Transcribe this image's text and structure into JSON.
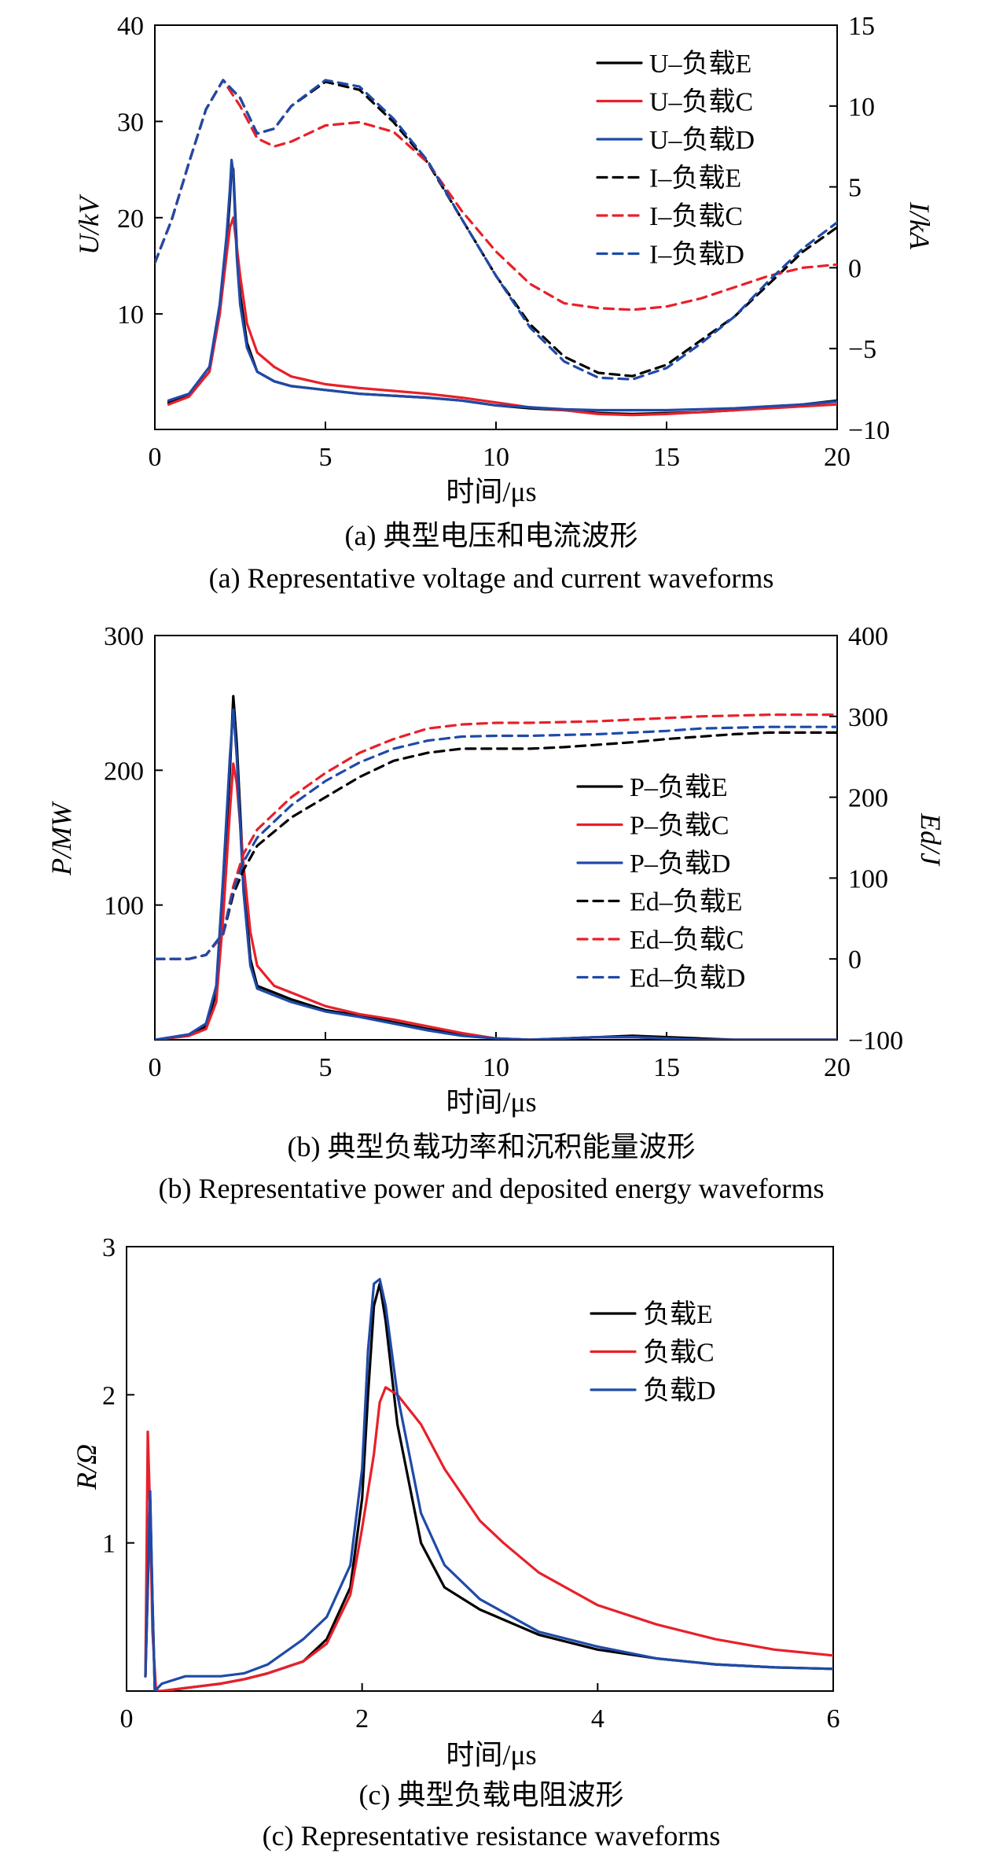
{
  "colors": {
    "E": "#000000",
    "C": "#e8202a",
    "D": "#1f4aa8"
  },
  "chart_data": [
    {
      "type": "line",
      "xlabel": "时间/μs",
      "ylabel_left": "U/kV",
      "ylabel_right": "I/kA",
      "caption_cn": "(a) 典型电压和电流波形",
      "caption_en": "(a) Representative voltage and current waveforms",
      "xlim": [
        0,
        20
      ],
      "ylim_left": [
        -2,
        40
      ],
      "ylim_right": [
        -10,
        15
      ],
      "xticks": [
        "0",
        "5",
        "10",
        "15",
        "20"
      ],
      "yticks_left": [
        "10",
        "20",
        "30",
        "40"
      ],
      "yticks_right": [
        "−10",
        "−5",
        "0",
        "5",
        "10",
        "15"
      ],
      "legend_position": "top-right",
      "series": [
        {
          "name": "U–负载E",
          "axis": "left",
          "style": "solid",
          "color_key": "E",
          "x": [
            0.4,
            1.0,
            1.6,
            1.9,
            2.1,
            2.2,
            2.25,
            2.3,
            2.4,
            2.5,
            2.7,
            3.0,
            3.5,
            4,
            5,
            6,
            7,
            8,
            9,
            10,
            11,
            12,
            13,
            14,
            15,
            16,
            17,
            18,
            19,
            20
          ],
          "y": [
            0.8,
            1.5,
            4,
            10,
            17,
            22,
            25.5,
            25,
            17,
            12,
            7,
            4,
            3,
            2.5,
            2.1,
            1.7,
            1.5,
            1.3,
            1.0,
            0.5,
            0.2,
            0,
            -0.3,
            -0.4,
            -0.3,
            -0.2,
            0,
            0.3,
            0.6,
            1.0
          ]
        },
        {
          "name": "U–负载C",
          "axis": "left",
          "style": "solid",
          "color_key": "C",
          "x": [
            0.4,
            1.0,
            1.6,
            1.9,
            2.1,
            2.2,
            2.3,
            2.4,
            2.5,
            2.7,
            3.0,
            3.5,
            4,
            5,
            6,
            7,
            8,
            9,
            10,
            11,
            12,
            13,
            14,
            15,
            16,
            17,
            18,
            19,
            20
          ],
          "y": [
            0.6,
            1.4,
            4,
            10,
            16,
            19,
            20,
            17,
            14,
            9,
            6,
            4.5,
            3.5,
            2.7,
            2.3,
            2.0,
            1.7,
            1.3,
            0.8,
            0.3,
            0,
            -0.4,
            -0.5,
            -0.4,
            -0.2,
            0,
            0.2,
            0.4,
            0.6
          ]
        },
        {
          "name": "U–负载D",
          "axis": "left",
          "style": "solid",
          "color_key": "D",
          "x": [
            0.4,
            1.0,
            1.6,
            1.9,
            2.1,
            2.2,
            2.25,
            2.3,
            2.4,
            2.5,
            2.7,
            3.0,
            3.5,
            4,
            5,
            6,
            7,
            8,
            9,
            10,
            11,
            12,
            13,
            14,
            15,
            16,
            17,
            18,
            19,
            20
          ],
          "y": [
            1.0,
            1.7,
            4.5,
            11,
            18,
            23,
            26,
            24.5,
            16,
            11,
            6.5,
            4,
            3,
            2.5,
            2.1,
            1.7,
            1.5,
            1.3,
            1.0,
            0.5,
            0.3,
            0.1,
            0,
            0,
            0,
            0.1,
            0.2,
            0.4,
            0.6,
            0.9
          ]
        },
        {
          "name": "I–负载E",
          "axis": "right",
          "style": "dashed",
          "color_key": "E",
          "x": [
            0,
            0.5,
            1.0,
            1.5,
            2.0,
            2.5,
            3.0,
            3.5,
            4,
            5,
            6,
            7,
            8,
            9,
            10,
            11,
            12,
            13,
            14,
            15,
            16,
            17,
            18,
            19,
            20
          ],
          "y": [
            0.3,
            3,
            6.5,
            9.8,
            11.6,
            10.5,
            8.3,
            8.6,
            10,
            11.5,
            11.0,
            9,
            6.5,
            3,
            -0.5,
            -3.5,
            -5.5,
            -6.5,
            -6.7,
            -6,
            -4.5,
            -3,
            -1,
            1,
            2.5
          ]
        },
        {
          "name": "I–负载C",
          "axis": "right",
          "style": "dashed",
          "color_key": "C",
          "x": [
            0,
            0.5,
            1.0,
            1.5,
            2.0,
            2.5,
            3.0,
            3.5,
            4,
            5,
            6,
            7,
            8,
            9,
            10,
            11,
            12,
            13,
            14,
            15,
            16,
            17,
            18,
            19,
            20
          ],
          "y": [
            0.3,
            3,
            6.5,
            9.8,
            11.6,
            10,
            8,
            7.5,
            7.8,
            8.8,
            9.0,
            8.4,
            6.5,
            3.5,
            1,
            -1,
            -2.2,
            -2.5,
            -2.6,
            -2.4,
            -1.9,
            -1.2,
            -0.5,
            0,
            0.2
          ]
        },
        {
          "name": "I–负载D",
          "axis": "right",
          "style": "dashed",
          "color_key": "D",
          "x": [
            0,
            0.5,
            1.0,
            1.5,
            2.0,
            2.5,
            3.0,
            3.5,
            4,
            5,
            6,
            7,
            8,
            9,
            10,
            11,
            12,
            13,
            14,
            15,
            16,
            17,
            18,
            19,
            20
          ],
          "y": [
            0.3,
            3,
            6.5,
            9.8,
            11.6,
            10.5,
            8.3,
            8.6,
            10,
            11.6,
            11.2,
            9.2,
            6.6,
            3,
            -0.5,
            -3.7,
            -5.8,
            -6.8,
            -6.9,
            -6.2,
            -4.7,
            -3,
            -0.8,
            1.2,
            2.8
          ]
        }
      ]
    },
    {
      "type": "line",
      "xlabel": "时间/μs",
      "ylabel_left": "P/MW",
      "ylabel_right": "Ed/J",
      "caption_cn": "(b) 典型负载功率和沉积能量波形",
      "caption_en": "(b) Representative power and deposited energy waveforms",
      "xlim": [
        0,
        20
      ],
      "ylim_left": [
        0,
        300
      ],
      "ylim_right": [
        -100,
        400
      ],
      "xticks": [
        "0",
        "5",
        "10",
        "15",
        "20"
      ],
      "yticks_left": [
        "100",
        "200",
        "300"
      ],
      "yticks_right": [
        "−100",
        "0",
        "100",
        "200",
        "300",
        "400"
      ],
      "legend_position": "center-right",
      "series": [
        {
          "name": "P–负载E",
          "axis": "left",
          "style": "solid",
          "color_key": "E",
          "x": [
            0,
            1.0,
            1.5,
            1.8,
            2.0,
            2.2,
            2.3,
            2.4,
            2.6,
            2.8,
            3,
            3.5,
            4,
            5,
            6,
            7,
            8,
            9,
            10,
            11,
            12,
            13,
            14,
            15,
            16,
            17,
            18,
            19,
            20
          ],
          "y": [
            0,
            3,
            10,
            35,
            110,
            200,
            255,
            220,
            120,
            60,
            40,
            35,
            30,
            22,
            18,
            13,
            8,
            4,
            1,
            0,
            1,
            2,
            3,
            2,
            1,
            0,
            0,
            0,
            0
          ]
        },
        {
          "name": "P–负载C",
          "axis": "left",
          "style": "solid",
          "color_key": "C",
          "x": [
            0,
            1.0,
            1.5,
            1.8,
            2.0,
            2.2,
            2.3,
            2.4,
            2.6,
            2.8,
            3,
            3.5,
            4,
            5,
            6,
            7,
            8,
            9,
            10,
            11,
            12,
            13,
            14,
            15,
            16,
            17,
            18,
            19,
            20
          ],
          "y": [
            0,
            3,
            8,
            28,
            90,
            170,
            205,
            190,
            130,
            80,
            55,
            40,
            35,
            25,
            19,
            15,
            10,
            5,
            1,
            0,
            1,
            2,
            2,
            1,
            0,
            0,
            0,
            0,
            0
          ]
        },
        {
          "name": "P–负载D",
          "axis": "left",
          "style": "solid",
          "color_key": "D",
          "x": [
            0,
            1.0,
            1.5,
            1.8,
            2.0,
            2.2,
            2.3,
            2.4,
            2.6,
            2.8,
            3,
            3.5,
            4,
            5,
            6,
            7,
            8,
            9,
            10,
            11,
            12,
            13,
            14,
            15,
            16,
            17,
            18,
            19,
            20
          ],
          "y": [
            0,
            4,
            12,
            40,
            120,
            210,
            245,
            210,
            110,
            55,
            38,
            33,
            28,
            21,
            17,
            12,
            7,
            3,
            1,
            0,
            1,
            2,
            2,
            1,
            0,
            0,
            0,
            0,
            0
          ]
        },
        {
          "name": "Ed–负载E",
          "axis": "right",
          "style": "dashed",
          "color_key": "E",
          "x": [
            0,
            1.0,
            1.5,
            2.0,
            2.3,
            2.6,
            3,
            4,
            5,
            6,
            7,
            8,
            9,
            10,
            11,
            12,
            13,
            14,
            15,
            16,
            17,
            18,
            19,
            20
          ],
          "y": [
            0,
            0,
            5,
            30,
            80,
            110,
            140,
            175,
            200,
            225,
            245,
            255,
            260,
            260,
            260,
            262,
            265,
            268,
            272,
            275,
            278,
            280,
            280,
            280
          ]
        },
        {
          "name": "Ed–负载C",
          "axis": "right",
          "style": "dashed",
          "color_key": "C",
          "x": [
            0,
            1.0,
            1.5,
            2.0,
            2.3,
            2.6,
            3,
            4,
            5,
            6,
            7,
            8,
            9,
            10,
            11,
            12,
            13,
            14,
            15,
            16,
            17,
            18,
            19,
            20
          ],
          "y": [
            0,
            0,
            5,
            30,
            90,
            130,
            160,
            200,
            230,
            255,
            272,
            285,
            290,
            292,
            292,
            293,
            294,
            296,
            298,
            300,
            301,
            302,
            302,
            302
          ]
        },
        {
          "name": "Ed–负载D",
          "axis": "right",
          "style": "dashed",
          "color_key": "D",
          "x": [
            0,
            1.0,
            1.5,
            2.0,
            2.3,
            2.6,
            3,
            4,
            5,
            6,
            7,
            8,
            9,
            10,
            11,
            12,
            13,
            14,
            15,
            16,
            17,
            18,
            19,
            20
          ],
          "y": [
            0,
            0,
            5,
            32,
            85,
            120,
            150,
            190,
            220,
            243,
            260,
            270,
            275,
            276,
            276,
            277,
            278,
            280,
            282,
            285,
            286,
            287,
            287,
            287
          ]
        }
      ]
    },
    {
      "type": "line",
      "xlabel": "时间/μs",
      "ylabel_left": "R/Ω",
      "caption_cn": "(c) 典型负载电阻波形",
      "caption_en": "(c) Representative resistance waveforms",
      "xlim": [
        0,
        6
      ],
      "ylim_left": [
        0,
        3
      ],
      "xticks": [
        "0",
        "2",
        "4",
        "6"
      ],
      "yticks_left": [
        "1",
        "2",
        "3"
      ],
      "legend_position": "top-right",
      "series": [
        {
          "name": "负载E",
          "axis": "left",
          "style": "solid",
          "color_key": "E",
          "x": [
            0.16,
            0.2,
            0.22,
            0.24,
            0.3,
            0.5,
            0.8,
            1.0,
            1.2,
            1.5,
            1.7,
            1.9,
            2.0,
            2.05,
            2.1,
            2.15,
            2.2,
            2.3,
            2.5,
            2.7,
            3.0,
            3.5,
            4,
            4.5,
            5,
            5.5,
            6
          ],
          "y": [
            0.1,
            1.3,
            0.6,
            0,
            0,
            0.02,
            0.05,
            0.08,
            0.12,
            0.2,
            0.35,
            0.7,
            1.3,
            2.0,
            2.6,
            2.75,
            2.5,
            1.8,
            1.0,
            0.7,
            0.55,
            0.38,
            0.28,
            0.22,
            0.18,
            0.16,
            0.15
          ]
        },
        {
          "name": "负载C",
          "axis": "left",
          "style": "solid",
          "color_key": "C",
          "x": [
            0.16,
            0.18,
            0.2,
            0.22,
            0.25,
            0.3,
            0.5,
            0.8,
            1.0,
            1.2,
            1.5,
            1.7,
            1.9,
            2.0,
            2.1,
            2.15,
            2.2,
            2.3,
            2.5,
            2.7,
            3.0,
            3.2,
            3.5,
            4,
            4.5,
            5,
            5.5,
            6
          ],
          "y": [
            0.1,
            1.75,
            1.2,
            0.4,
            0,
            0,
            0.02,
            0.05,
            0.08,
            0.12,
            0.2,
            0.32,
            0.65,
            1.1,
            1.6,
            1.95,
            2.05,
            2.0,
            1.8,
            1.5,
            1.15,
            1.0,
            0.8,
            0.58,
            0.45,
            0.35,
            0.28,
            0.24
          ]
        },
        {
          "name": "负载D",
          "axis": "left",
          "style": "solid",
          "color_key": "D",
          "x": [
            0.16,
            0.2,
            0.22,
            0.24,
            0.3,
            0.5,
            0.8,
            1.0,
            1.2,
            1.5,
            1.7,
            1.9,
            2.0,
            2.05,
            2.1,
            2.15,
            2.2,
            2.3,
            2.5,
            2.7,
            3.0,
            3.5,
            4,
            4.5,
            5,
            5.5,
            6
          ],
          "y": [
            0.1,
            1.35,
            0.6,
            0,
            0.05,
            0.1,
            0.1,
            0.12,
            0.18,
            0.35,
            0.5,
            0.85,
            1.5,
            2.3,
            2.75,
            2.78,
            2.6,
            2.0,
            1.2,
            0.85,
            0.62,
            0.4,
            0.3,
            0.22,
            0.18,
            0.16,
            0.15
          ]
        }
      ]
    }
  ]
}
